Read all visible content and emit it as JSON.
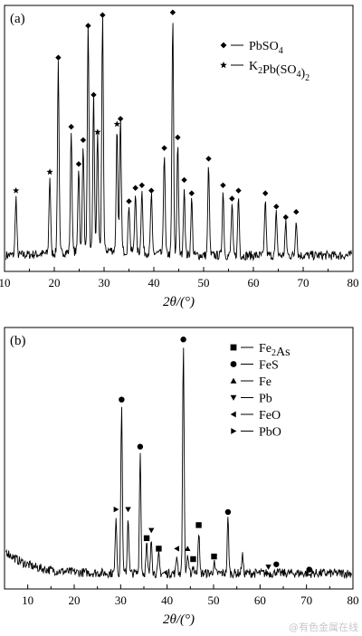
{
  "chart_data": [
    {
      "type": "line",
      "panel_label": "(a)",
      "xlabel": "2θ/(°)",
      "xlim": [
        10,
        80
      ],
      "x_ticks": [
        "10",
        "20",
        "30",
        "40",
        "50",
        "60",
        "70",
        "80"
      ],
      "y_ticks_shown": false,
      "legend_placement": "top-right",
      "legend": [
        {
          "marker": "diamond",
          "label": "PbSO",
          "sub": "4",
          "tail": ""
        },
        {
          "marker": "star",
          "label": "K",
          "parts": [
            [
              "K",
              ""
            ],
            [
              "2",
              "sub"
            ],
            [
              "Pb(SO",
              ""
            ],
            [
              "4",
              "sub"
            ],
            [
              ")",
              ""
            ],
            [
              "2",
              "sub"
            ]
          ]
        }
      ],
      "series": [
        {
          "baseline": 0.06,
          "peaks": [
            {
              "x": 12.3,
              "h": 0.28,
              "m": "star"
            },
            {
              "x": 19.1,
              "h": 0.35,
              "m": "star"
            },
            {
              "x": 20.8,
              "h": 0.78,
              "m": "diamond"
            },
            {
              "x": 23.4,
              "h": 0.52,
              "m": "diamond"
            },
            {
              "x": 24.9,
              "h": 0.38,
              "m": "diamond"
            },
            {
              "x": 25.8,
              "h": 0.47,
              "m": "diamond"
            },
            {
              "x": 26.8,
              "h": 0.9,
              "m": "diamond"
            },
            {
              "x": 27.9,
              "h": 0.64,
              "m": "diamond"
            },
            {
              "x": 28.7,
              "h": 0.5,
              "m": "star"
            },
            {
              "x": 29.7,
              "h": 0.94,
              "m": "diamond"
            },
            {
              "x": 32.6,
              "h": 0.53,
              "m": "star"
            },
            {
              "x": 33.3,
              "h": 0.55,
              "m": "diamond"
            },
            {
              "x": 35.0,
              "h": 0.24,
              "m": "diamond"
            },
            {
              "x": 36.3,
              "h": 0.29,
              "m": "diamond"
            },
            {
              "x": 37.6,
              "h": 0.3,
              "m": "diamond"
            },
            {
              "x": 39.5,
              "h": 0.28,
              "m": "diamond"
            },
            {
              "x": 42.1,
              "h": 0.44,
              "m": "diamond"
            },
            {
              "x": 43.8,
              "h": 0.95,
              "m": "diamond"
            },
            {
              "x": 44.8,
              "h": 0.48,
              "m": "diamond"
            },
            {
              "x": 46.1,
              "h": 0.32,
              "m": "diamond"
            },
            {
              "x": 47.6,
              "h": 0.27,
              "m": "diamond"
            },
            {
              "x": 51.0,
              "h": 0.4,
              "m": "diamond"
            },
            {
              "x": 53.9,
              "h": 0.3,
              "m": "diamond"
            },
            {
              "x": 55.7,
              "h": 0.25,
              "m": "diamond"
            },
            {
              "x": 57.0,
              "h": 0.28,
              "m": "diamond"
            },
            {
              "x": 62.4,
              "h": 0.27,
              "m": "diamond"
            },
            {
              "x": 64.6,
              "h": 0.22,
              "m": "diamond"
            },
            {
              "x": 66.5,
              "h": 0.18,
              "m": "diamond"
            },
            {
              "x": 68.6,
              "h": 0.2,
              "m": "diamond"
            }
          ]
        }
      ]
    },
    {
      "type": "line",
      "panel_label": "(b)",
      "xlabel": "2θ/(°)",
      "xlim": [
        5,
        80
      ],
      "x_ticks": [
        "10",
        "20",
        "30",
        "40",
        "50",
        "60",
        "70",
        "80"
      ],
      "y_ticks_shown": false,
      "legend_placement": "top-right",
      "legend": [
        {
          "marker": "square",
          "parts": [
            [
              "Fe",
              ""
            ],
            [
              "2",
              "sub"
            ],
            [
              "As",
              ""
            ]
          ]
        },
        {
          "marker": "circle",
          "parts": [
            [
              "FeS",
              ""
            ]
          ]
        },
        {
          "marker": "triangle-up",
          "parts": [
            [
              "Fe",
              ""
            ]
          ]
        },
        {
          "marker": "triangle-down",
          "parts": [
            [
              "Pb",
              ""
            ]
          ]
        },
        {
          "marker": "triangle-left",
          "parts": [
            [
              "FeO",
              ""
            ]
          ]
        },
        {
          "marker": "triangle-right",
          "parts": [
            [
              "PbO",
              ""
            ]
          ]
        }
      ],
      "series": [
        {
          "baseline": 0.06,
          "peaks": [
            {
              "x": 18.5,
              "h": 0.06,
              "m": ""
            },
            {
              "x": 29.0,
              "h": 0.28,
              "m": "triangle-right"
            },
            {
              "x": 30.2,
              "h": 0.7,
              "m": "circle"
            },
            {
              "x": 31.6,
              "h": 0.28,
              "m": "triangle-down"
            },
            {
              "x": 34.2,
              "h": 0.52,
              "m": "circle"
            },
            {
              "x": 35.6,
              "h": 0.17,
              "m": "square"
            },
            {
              "x": 36.6,
              "h": 0.2,
              "m": "triangle-down"
            },
            {
              "x": 38.2,
              "h": 0.13,
              "m": "square"
            },
            {
              "x": 42.1,
              "h": 0.13,
              "m": "triangle-left"
            },
            {
              "x": 43.5,
              "h": 0.93,
              "m": "circle"
            },
            {
              "x": 44.4,
              "h": 0.13,
              "m": "triangle-up"
            },
            {
              "x": 45.6,
              "h": 0.09,
              "m": "square"
            },
            {
              "x": 46.8,
              "h": 0.22,
              "m": "square"
            },
            {
              "x": 50.1,
              "h": 0.1,
              "m": "square"
            },
            {
              "x": 53.1,
              "h": 0.27,
              "m": "circle"
            },
            {
              "x": 56.2,
              "h": 0.13,
              "m": ""
            },
            {
              "x": 61.8,
              "h": 0.06,
              "m": "triangle-down"
            },
            {
              "x": 63.5,
              "h": 0.07,
              "m": "circle"
            },
            {
              "x": 70.6,
              "h": 0.05,
              "m": "circle"
            }
          ]
        }
      ]
    }
  ],
  "watermark": "@有色金属在线"
}
